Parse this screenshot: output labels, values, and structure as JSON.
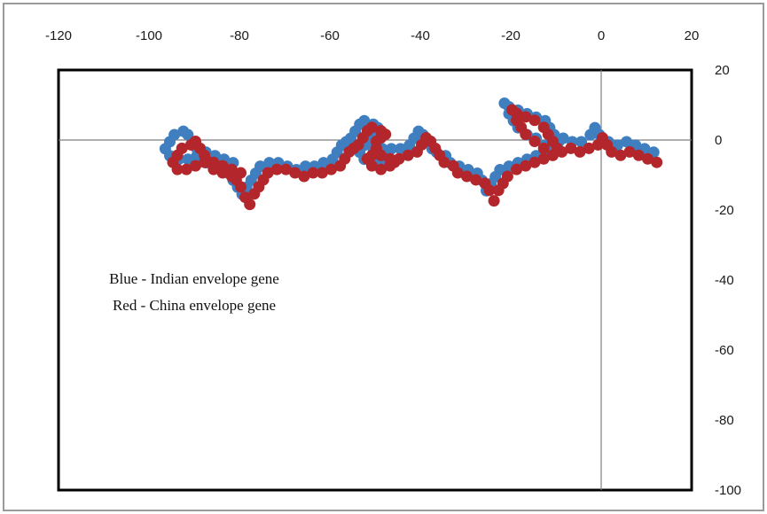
{
  "chart_data": {
    "type": "scatter",
    "title": "",
    "xlabel": "",
    "ylabel": "",
    "xlim": [
      -120,
      20
    ],
    "ylim": [
      -100,
      20
    ],
    "x_ticks": [
      "-120",
      "-100",
      "-80",
      "-60",
      "-40",
      "-20",
      "0",
      "20"
    ],
    "y_ticks": [
      "20",
      "0",
      "-20",
      "-40",
      "-60",
      "-80",
      "-100"
    ],
    "grid": false,
    "legend_text": [
      "Blue - Indian envelope gene",
      "Red - China envelope gene"
    ],
    "series": [
      {
        "color": "#3f7fc0",
        "points": [
          [
            12,
            -4
          ],
          [
            10,
            -3
          ],
          [
            8,
            -2
          ],
          [
            6,
            -1
          ],
          [
            4,
            -2
          ],
          [
            2,
            -1
          ],
          [
            0,
            1
          ],
          [
            -1,
            3
          ],
          [
            -2,
            1
          ],
          [
            -4,
            -1
          ],
          [
            -6,
            -1
          ],
          [
            -8,
            0
          ],
          [
            -10,
            -1
          ],
          [
            -12,
            -2
          ],
          [
            -14,
            0
          ],
          [
            -16,
            1
          ],
          [
            -18,
            3
          ],
          [
            -19,
            5
          ],
          [
            -20,
            7
          ],
          [
            -21,
            10
          ],
          [
            -20,
            9
          ],
          [
            -18,
            8
          ],
          [
            -16,
            7
          ],
          [
            -14,
            6
          ],
          [
            -12,
            5
          ],
          [
            -11,
            3
          ],
          [
            -10,
            1
          ],
          [
            -9,
            -1
          ],
          [
            -10,
            -3
          ],
          [
            -12,
            -4
          ],
          [
            -14,
            -5
          ],
          [
            -16,
            -6
          ],
          [
            -18,
            -7
          ],
          [
            -20,
            -8
          ],
          [
            -22,
            -9
          ],
          [
            -23,
            -11
          ],
          [
            -24,
            -13
          ],
          [
            -25,
            -15
          ],
          [
            -26,
            -12
          ],
          [
            -27,
            -10
          ],
          [
            -29,
            -9
          ],
          [
            -31,
            -8
          ],
          [
            -33,
            -7
          ],
          [
            -34,
            -5
          ],
          [
            -36,
            -4
          ],
          [
            -37,
            -3
          ],
          [
            -38,
            -1
          ],
          [
            -39,
            1
          ],
          [
            -40,
            2
          ],
          [
            -41,
            0
          ],
          [
            -42,
            -2
          ],
          [
            -44,
            -3
          ],
          [
            -46,
            -3
          ],
          [
            -48,
            -3
          ],
          [
            -50,
            -2
          ],
          [
            -51,
            -1
          ],
          [
            -52,
            -2
          ],
          [
            -53,
            -4
          ],
          [
            -52,
            -6
          ],
          [
            -50,
            -7
          ],
          [
            -48,
            -6
          ],
          [
            -47,
            -5
          ],
          [
            -48,
            -4
          ],
          [
            -50,
            -3
          ],
          [
            -51,
            -1
          ],
          [
            -51,
            1
          ],
          [
            -50,
            2
          ],
          [
            -49,
            3
          ],
          [
            -50,
            4
          ],
          [
            -52,
            5
          ],
          [
            -53,
            4
          ],
          [
            -54,
            2
          ],
          [
            -55,
            0
          ],
          [
            -56,
            -1
          ],
          [
            -57,
            -2
          ],
          [
            -58,
            -4
          ],
          [
            -59,
            -6
          ],
          [
            -61,
            -7
          ],
          [
            -63,
            -8
          ],
          [
            -65,
            -8
          ],
          [
            -67,
            -9
          ],
          [
            -69,
            -8
          ],
          [
            -71,
            -7
          ],
          [
            -73,
            -7
          ],
          [
            -75,
            -8
          ],
          [
            -76,
            -10
          ],
          [
            -77,
            -12
          ],
          [
            -78,
            -14
          ],
          [
            -79,
            -16
          ],
          [
            -80,
            -14
          ],
          [
            -81,
            -12
          ],
          [
            -82,
            -10
          ],
          [
            -83,
            -9
          ],
          [
            -85,
            -8
          ],
          [
            -87,
            -7
          ],
          [
            -88,
            -5
          ],
          [
            -89,
            -3
          ],
          [
            -90,
            -1
          ],
          [
            -91,
            1
          ],
          [
            -92,
            2
          ],
          [
            -94,
            1
          ],
          [
            -95,
            -1
          ],
          [
            -96,
            -3
          ],
          [
            -95,
            -5
          ],
          [
            -93,
            -6
          ],
          [
            -91,
            -6
          ],
          [
            -89,
            -5
          ],
          [
            -87,
            -4
          ],
          [
            -85,
            -5
          ],
          [
            -83,
            -6
          ],
          [
            -81,
            -7
          ]
        ]
      },
      {
        "color": "#b3262b",
        "points": [
          [
            12,
            -6
          ],
          [
            10,
            -5
          ],
          [
            8,
            -4
          ],
          [
            6,
            -3
          ],
          [
            4,
            -4
          ],
          [
            2,
            -3
          ],
          [
            1,
            -1
          ],
          [
            0,
            1
          ],
          [
            -1,
            -1
          ],
          [
            -3,
            -2
          ],
          [
            -5,
            -3
          ],
          [
            -7,
            -2
          ],
          [
            -9,
            -3
          ],
          [
            -11,
            -4
          ],
          [
            -13,
            -2
          ],
          [
            -15,
            0
          ],
          [
            -17,
            2
          ],
          [
            -18,
            4
          ],
          [
            -19,
            6
          ],
          [
            -20,
            9
          ],
          [
            -19,
            8
          ],
          [
            -17,
            7
          ],
          [
            -15,
            6
          ],
          [
            -13,
            4
          ],
          [
            -12,
            2
          ],
          [
            -11,
            0
          ],
          [
            -10,
            -2
          ],
          [
            -11,
            -4
          ],
          [
            -13,
            -5
          ],
          [
            -15,
            -6
          ],
          [
            -17,
            -7
          ],
          [
            -19,
            -8
          ],
          [
            -21,
            -10
          ],
          [
            -22,
            -12
          ],
          [
            -23,
            -14
          ],
          [
            -24,
            -17
          ],
          [
            -25,
            -14
          ],
          [
            -26,
            -12
          ],
          [
            -28,
            -11
          ],
          [
            -30,
            -10
          ],
          [
            -32,
            -9
          ],
          [
            -33,
            -7
          ],
          [
            -35,
            -6
          ],
          [
            -36,
            -4
          ],
          [
            -37,
            -2
          ],
          [
            -38,
            0
          ],
          [
            -39,
            1
          ],
          [
            -40,
            -1
          ],
          [
            -41,
            -3
          ],
          [
            -43,
            -4
          ],
          [
            -45,
            -5
          ],
          [
            -47,
            -5
          ],
          [
            -49,
            -4
          ],
          [
            -50,
            -3
          ],
          [
            -51,
            -4
          ],
          [
            -52,
            -5
          ],
          [
            -51,
            -7
          ],
          [
            -49,
            -8
          ],
          [
            -47,
            -7
          ],
          [
            -46,
            -6
          ],
          [
            -47,
            -5
          ],
          [
            -49,
            -4
          ],
          [
            -50,
            -2
          ],
          [
            -50,
            0
          ],
          [
            -49,
            1
          ],
          [
            -48,
            2
          ],
          [
            -49,
            3
          ],
          [
            -51,
            4
          ],
          [
            -52,
            3
          ],
          [
            -53,
            1
          ],
          [
            -54,
            -1
          ],
          [
            -55,
            -2
          ],
          [
            -56,
            -3
          ],
          [
            -57,
            -5
          ],
          [
            -58,
            -7
          ],
          [
            -60,
            -8
          ],
          [
            -62,
            -9
          ],
          [
            -64,
            -9
          ],
          [
            -66,
            -10
          ],
          [
            -68,
            -9
          ],
          [
            -70,
            -8
          ],
          [
            -72,
            -8
          ],
          [
            -74,
            -9
          ],
          [
            -75,
            -11
          ],
          [
            -76,
            -13
          ],
          [
            -77,
            -15
          ],
          [
            -78,
            -18
          ],
          [
            -79,
            -16
          ],
          [
            -80,
            -13
          ],
          [
            -81,
            -11
          ],
          [
            -82,
            -10
          ],
          [
            -84,
            -9
          ],
          [
            -86,
            -8
          ],
          [
            -87,
            -6
          ],
          [
            -88,
            -4
          ],
          [
            -89,
            -2
          ],
          [
            -90,
            0
          ],
          [
            -91,
            -1
          ],
          [
            -93,
            -2
          ],
          [
            -94,
            -4
          ],
          [
            -95,
            -6
          ],
          [
            -94,
            -8
          ],
          [
            -92,
            -8
          ],
          [
            -90,
            -7
          ],
          [
            -88,
            -6
          ],
          [
            -86,
            -6
          ],
          [
            -84,
            -7
          ],
          [
            -82,
            -8
          ],
          [
            -80,
            -9
          ]
        ]
      }
    ]
  }
}
